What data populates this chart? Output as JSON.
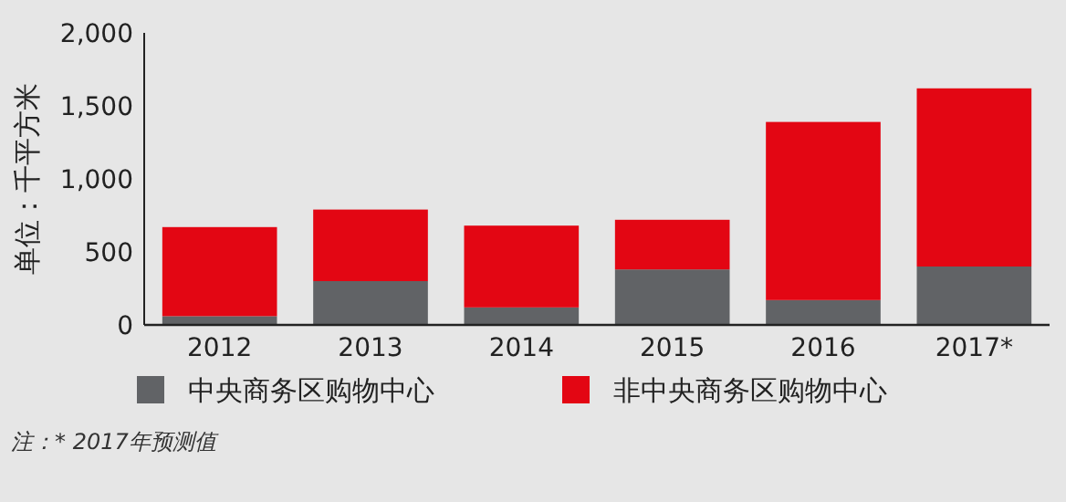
{
  "chart_data": {
    "type": "bar",
    "stacked": true,
    "ylabel": "单位：千平方米",
    "categories": [
      "2012",
      "2013",
      "2014",
      "2015",
      "2016",
      "2017*"
    ],
    "series": [
      {
        "name": "中央商务区购物中心",
        "color": "#616366",
        "values": [
          60,
          300,
          120,
          380,
          170,
          400
        ]
      },
      {
        "name": "非中央商务区购物中心",
        "color": "#e30613",
        "values": [
          610,
          490,
          560,
          340,
          1220,
          1220
        ]
      }
    ],
    "ylim": [
      0,
      2000
    ],
    "yticks": [
      0,
      {
        "value": 500,
        "label": "500"
      },
      {
        "value": 1000,
        "label": "1,000"
      },
      {
        "value": 1500,
        "label": "1,500"
      },
      {
        "value": 2000,
        "label": "2,000"
      }
    ],
    "grid": false,
    "legend": "bottom",
    "annotations": [
      "注：* 2017年预测值"
    ]
  }
}
